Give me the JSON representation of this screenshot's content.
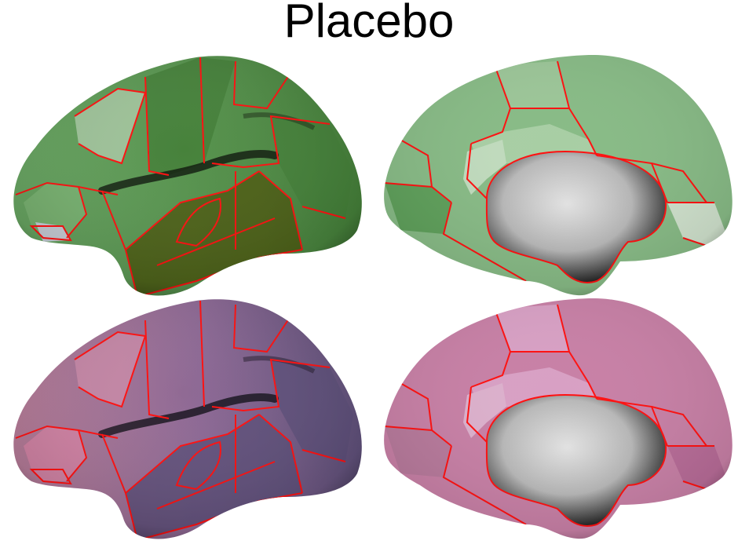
{
  "title": "Placebo",
  "colors": {
    "background": "#ffffff",
    "parcel_border": "#ff1010",
    "green_light": "#a9c9a4",
    "green_mid": "#6aa764",
    "green_dark": "#447f38",
    "green_olive": "#4c5a12",
    "purple_light": "#c7819f",
    "purple_mid": "#8c6894",
    "purple_dark": "#5d4f79",
    "pink_light": "#d8a0c4",
    "pink_mid": "#c880a6",
    "medial_wall": "#bfbfbf"
  },
  "panels": [
    {
      "name": "lateral-view-green",
      "palette": "green"
    },
    {
      "name": "medial-view-green",
      "palette": "green"
    },
    {
      "name": "lateral-view-purple",
      "palette": "purple"
    },
    {
      "name": "medial-view-pink",
      "palette": "pink"
    }
  ]
}
